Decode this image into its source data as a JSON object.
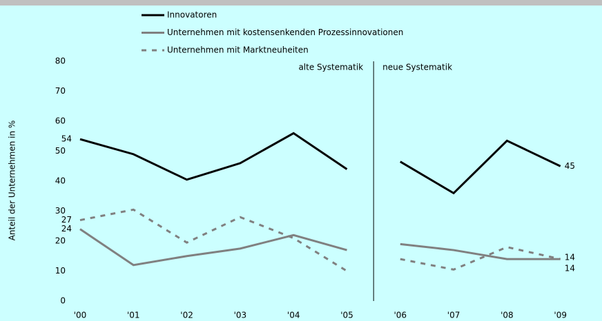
{
  "chart_data": {
    "type": "line",
    "y_label": "Anteil der Unternehmen in %",
    "categories": [
      "'00",
      "'01",
      "'02",
      "'03",
      "'04",
      "'05",
      "'06",
      "'07",
      "'08",
      "'09"
    ],
    "series": [
      {
        "name": "Innovatoren",
        "color": "#000000",
        "dash": "solid",
        "values": [
          54,
          49,
          40.5,
          46,
          56,
          44,
          46.5,
          36,
          53.5,
          45
        ]
      },
      {
        "name": "Unternehmen mit kostensenkenden Prozessinnovationen",
        "color": "#808080",
        "dash": "solid",
        "values": [
          24,
          12,
          15,
          17.5,
          22,
          17,
          19,
          17,
          14,
          14
        ]
      },
      {
        "name": "Unternehmen mit Marktneuheiten",
        "color": "#808080",
        "dash": "dashed",
        "values": [
          27,
          30.5,
          19.5,
          28,
          21,
          10,
          14,
          10.5,
          18,
          14
        ]
      }
    ],
    "ylim": [
      0,
      80
    ],
    "yticks": [
      0,
      10,
      20,
      30,
      40,
      50,
      60,
      70,
      80
    ],
    "grid": false,
    "data_labels": "ends",
    "divider": {
      "after": "'05",
      "left_label": "alte Systematik",
      "right_label": "neue Systematik"
    }
  }
}
